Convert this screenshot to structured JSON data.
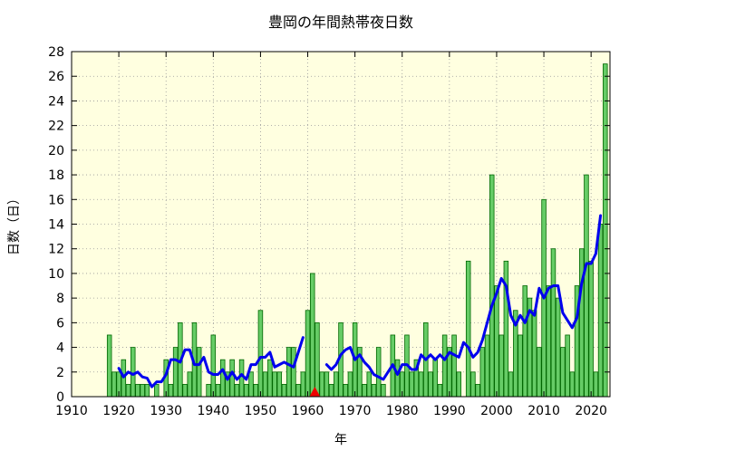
{
  "chart_data": {
    "type": "bar",
    "title": "豊岡の年間熱帯夜日数",
    "xlabel": "年",
    "ylabel": "日数（日）",
    "xlim": [
      1910,
      2024
    ],
    "ylim": [
      0,
      28
    ],
    "x_ticks": [
      "1910",
      "1920",
      "1930",
      "1940",
      "1950",
      "1960",
      "1970",
      "1980",
      "1990",
      "2000",
      "2010",
      "2020"
    ],
    "y_ticks": [
      "0",
      "2",
      "4",
      "6",
      "8",
      "10",
      "12",
      "14",
      "16",
      "18",
      "20",
      "22",
      "24",
      "26",
      "28"
    ],
    "grid": true,
    "colors": {
      "plot_background": "#ffffe0",
      "bar_fill": "#66cc66",
      "bar_stroke": "#006600",
      "moving_average": "#0000ee",
      "marker": "#ee0000",
      "grid": "#999999"
    },
    "series": [
      {
        "type": "bar",
        "points": [
          [
            1918,
            5
          ],
          [
            1919,
            2
          ],
          [
            1920,
            2
          ],
          [
            1921,
            3
          ],
          [
            1922,
            1
          ],
          [
            1923,
            4
          ],
          [
            1924,
            1
          ],
          [
            1925,
            1
          ],
          [
            1926,
            1
          ],
          [
            1927,
            0
          ],
          [
            1928,
            1
          ],
          [
            1929,
            0
          ],
          [
            1930,
            3
          ],
          [
            1931,
            1
          ],
          [
            1932,
            4
          ],
          [
            1933,
            6
          ],
          [
            1934,
            1
          ],
          [
            1935,
            2
          ],
          [
            1936,
            6
          ],
          [
            1937,
            4
          ],
          [
            1938,
            0
          ],
          [
            1939,
            1
          ],
          [
            1940,
            5
          ],
          [
            1941,
            1
          ],
          [
            1942,
            3
          ],
          [
            1943,
            2
          ],
          [
            1944,
            3
          ],
          [
            1945,
            1
          ],
          [
            1946,
            3
          ],
          [
            1947,
            1
          ],
          [
            1948,
            2
          ],
          [
            1949,
            1
          ],
          [
            1950,
            7
          ],
          [
            1951,
            2
          ],
          [
            1952,
            3
          ],
          [
            1953,
            2
          ],
          [
            1954,
            2
          ],
          [
            1955,
            1
          ],
          [
            1956,
            4
          ],
          [
            1957,
            4
          ],
          [
            1958,
            1
          ],
          [
            1959,
            2
          ],
          [
            1960,
            7
          ],
          [
            1961,
            10
          ],
          [
            1962,
            6
          ],
          [
            1963,
            2
          ],
          [
            1964,
            2
          ],
          [
            1965,
            1
          ],
          [
            1966,
            2
          ],
          [
            1967,
            6
          ],
          [
            1968,
            1
          ],
          [
            1969,
            2
          ],
          [
            1970,
            6
          ],
          [
            1971,
            4
          ],
          [
            1972,
            1
          ],
          [
            1973,
            2
          ],
          [
            1974,
            1
          ],
          [
            1975,
            4
          ],
          [
            1976,
            1
          ],
          [
            1977,
            0
          ],
          [
            1978,
            5
          ],
          [
            1979,
            3
          ],
          [
            1980,
            2
          ],
          [
            1981,
            5
          ],
          [
            1982,
            2
          ],
          [
            1983,
            3
          ],
          [
            1984,
            2
          ],
          [
            1985,
            6
          ],
          [
            1986,
            2
          ],
          [
            1987,
            3
          ],
          [
            1988,
            1
          ],
          [
            1989,
            5
          ],
          [
            1990,
            4
          ],
          [
            1991,
            5
          ],
          [
            1992,
            2
          ],
          [
            1993,
            0
          ],
          [
            1994,
            11
          ],
          [
            1995,
            2
          ],
          [
            1996,
            1
          ],
          [
            1997,
            4
          ],
          [
            1998,
            5
          ],
          [
            1999,
            18
          ],
          [
            2000,
            9
          ],
          [
            2001,
            5
          ],
          [
            2002,
            11
          ],
          [
            2003,
            2
          ],
          [
            2004,
            7
          ],
          [
            2005,
            5
          ],
          [
            2006,
            9
          ],
          [
            2007,
            8
          ],
          [
            2008,
            7
          ],
          [
            2009,
            4
          ],
          [
            2010,
            16
          ],
          [
            2011,
            9
          ],
          [
            2012,
            12
          ],
          [
            2013,
            8
          ],
          [
            2014,
            4
          ],
          [
            2015,
            5
          ],
          [
            2016,
            2
          ],
          [
            2017,
            9
          ],
          [
            2018,
            12
          ],
          [
            2019,
            18
          ],
          [
            2020,
            11
          ],
          [
            2021,
            2
          ],
          [
            2022,
            14
          ],
          [
            2023,
            27
          ]
        ]
      },
      {
        "type": "line",
        "segments": [
          [
            [
              1920,
              2.3
            ],
            [
              1921,
              1.6
            ],
            [
              1922,
              2.0
            ],
            [
              1923,
              1.8
            ],
            [
              1924,
              2.0
            ],
            [
              1925,
              1.6
            ],
            [
              1926,
              1.5
            ],
            [
              1927,
              0.8
            ],
            [
              1928,
              1.2
            ],
            [
              1929,
              1.2
            ],
            [
              1930,
              1.8
            ],
            [
              1931,
              3.0
            ],
            [
              1932,
              3.0
            ],
            [
              1933,
              2.8
            ],
            [
              1934,
              3.8
            ],
            [
              1935,
              3.8
            ],
            [
              1936,
              2.6
            ],
            [
              1937,
              2.6
            ],
            [
              1938,
              3.2
            ],
            [
              1939,
              2.0
            ],
            [
              1940,
              1.8
            ],
            [
              1941,
              1.8
            ],
            [
              1942,
              2.2
            ],
            [
              1943,
              1.4
            ],
            [
              1944,
              2.0
            ],
            [
              1945,
              1.4
            ],
            [
              1946,
              1.8
            ],
            [
              1947,
              1.4
            ],
            [
              1948,
              2.6
            ],
            [
              1949,
              2.6
            ],
            [
              1950,
              3.2
            ],
            [
              1951,
              3.2
            ],
            [
              1952,
              3.6
            ],
            [
              1953,
              2.4
            ],
            [
              1954,
              2.6
            ],
            [
              1955,
              2.8
            ],
            [
              1956,
              2.6
            ],
            [
              1957,
              2.4
            ],
            [
              1958,
              3.6
            ],
            [
              1959,
              4.8
            ]
          ],
          [
            [
              1964,
              2.6
            ],
            [
              1965,
              2.2
            ],
            [
              1966,
              2.6
            ],
            [
              1967,
              3.4
            ],
            [
              1968,
              3.8
            ],
            [
              1969,
              4.0
            ],
            [
              1970,
              3.0
            ],
            [
              1971,
              3.4
            ],
            [
              1972,
              2.8
            ],
            [
              1973,
              2.4
            ],
            [
              1974,
              1.8
            ],
            [
              1975,
              1.6
            ],
            [
              1976,
              1.4
            ],
            [
              1977,
              2.0
            ],
            [
              1978,
              2.6
            ],
            [
              1979,
              1.8
            ],
            [
              1980,
              2.6
            ],
            [
              1981,
              2.6
            ],
            [
              1982,
              2.2
            ],
            [
              1983,
              2.2
            ],
            [
              1984,
              3.4
            ],
            [
              1985,
              3.0
            ],
            [
              1986,
              3.4
            ],
            [
              1987,
              3.0
            ],
            [
              1988,
              3.4
            ],
            [
              1989,
              3.0
            ],
            [
              1990,
              3.6
            ],
            [
              1991,
              3.4
            ],
            [
              1992,
              3.2
            ],
            [
              1993,
              4.4
            ],
            [
              1994,
              4.0
            ],
            [
              1995,
              3.2
            ],
            [
              1996,
              3.6
            ],
            [
              1997,
              4.6
            ],
            [
              1998,
              6.0
            ],
            [
              1999,
              7.4
            ],
            [
              2000,
              8.4
            ],
            [
              2001,
              9.6
            ],
            [
              2002,
              9.0
            ],
            [
              2003,
              6.6
            ],
            [
              2004,
              5.8
            ],
            [
              2005,
              6.6
            ],
            [
              2006,
              6.0
            ],
            [
              2007,
              7.0
            ],
            [
              2008,
              6.6
            ],
            [
              2009,
              8.8
            ],
            [
              2010,
              8.0
            ],
            [
              2011,
              8.8
            ],
            [
              2012,
              9.0
            ],
            [
              2013,
              9.0
            ],
            [
              2014,
              6.8
            ],
            [
              2015,
              6.2
            ],
            [
              2016,
              5.6
            ],
            [
              2017,
              6.4
            ],
            [
              2018,
              9.2
            ],
            [
              2019,
              10.8
            ],
            [
              2020,
              10.8
            ],
            [
              2021,
              11.6
            ],
            [
              2022,
              14.7
            ]
          ]
        ]
      },
      {
        "type": "marker",
        "points": [
          [
            1961.5,
            0
          ]
        ]
      }
    ]
  }
}
